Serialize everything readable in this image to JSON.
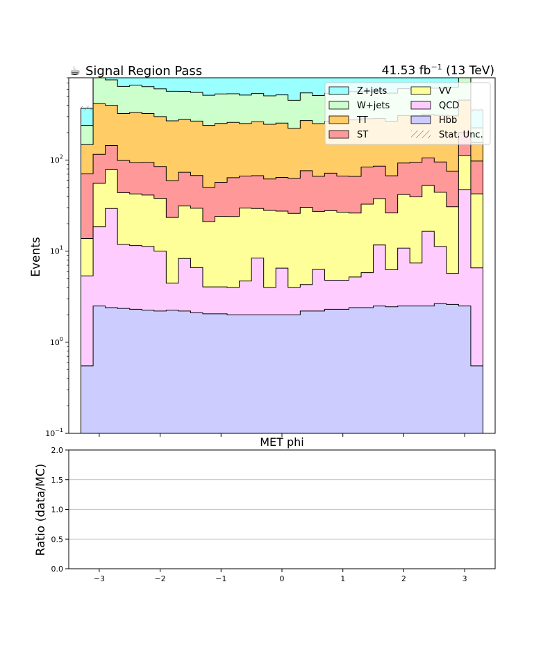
{
  "chart_data": [
    {
      "type": "area",
      "title": "Signal Region Pass",
      "title_icon": "coffee-icon",
      "title_icon_glyph": "☕",
      "lumi_label": "41.53 fb",
      "lumi_sup": "−1",
      "energy_label": " (13 TeV)",
      "ylabel": "Events",
      "xlabel": "MET phi",
      "y_scale": "log",
      "ylim": [
        0.1,
        800
      ],
      "y_ticks": [
        {
          "value": 0.1,
          "base": "10",
          "exp": "−1"
        },
        {
          "value": 1,
          "base": "10",
          "exp": "0"
        },
        {
          "value": 10,
          "base": "10",
          "exp": "1"
        },
        {
          "value": 100,
          "base": "10",
          "exp": "2"
        }
      ],
      "xlim": [
        -3.5,
        3.5
      ],
      "x_ticks": [
        {
          "value": -3,
          "label": "−3"
        },
        {
          "value": -2,
          "label": "−2"
        },
        {
          "value": -1,
          "label": "−1"
        },
        {
          "value": 0,
          "label": "0"
        },
        {
          "value": 1,
          "label": "1"
        },
        {
          "value": 2,
          "label": "2"
        },
        {
          "value": 3,
          "label": "3"
        }
      ],
      "stacked": true,
      "legend_position": "top-right",
      "bin_edges": [
        -3.3,
        -3.1,
        -2.9,
        -2.7,
        -2.5,
        -2.3,
        -2.1,
        -1.9,
        -1.7,
        -1.5,
        -1.3,
        -1.1,
        -0.9,
        -0.7,
        -0.5,
        -0.3,
        -0.1,
        0.1,
        0.3,
        0.5,
        0.7,
        0.9,
        1.1,
        1.3,
        1.5,
        1.7,
        1.9,
        2.1,
        2.3,
        2.5,
        2.7,
        2.9,
        3.1,
        3.3
      ],
      "series": [
        {
          "name": "Hbb",
          "color": "#ccccff",
          "values": [
            0.55,
            2.5,
            2.4,
            2.35,
            2.3,
            2.25,
            2.2,
            2.25,
            2.2,
            2.1,
            2.05,
            2.05,
            2.0,
            2.0,
            2.0,
            2.0,
            2.0,
            2.0,
            2.2,
            2.2,
            2.3,
            2.3,
            2.4,
            2.4,
            2.5,
            2.45,
            2.5,
            2.5,
            2.5,
            2.65,
            2.6,
            2.5,
            0.55
          ]
        },
        {
          "name": "QCD",
          "color": "#ffccff",
          "values": [
            4.8,
            16,
            27,
            9.5,
            9.2,
            9.0,
            7.8,
            2.2,
            6.1,
            4.5,
            2.0,
            2.0,
            2.0,
            2.7,
            6.4,
            2.0,
            4.5,
            2.0,
            2.1,
            4.1,
            2.5,
            2.5,
            2.8,
            3.4,
            9.2,
            3.8,
            8.3,
            4.9,
            14,
            8.6,
            3.1,
            45,
            6.0
          ]
        },
        {
          "name": "VV",
          "color": "#ffff99",
          "values": [
            8.4,
            37,
            49,
            32,
            31,
            30,
            28,
            19,
            23,
            23,
            17,
            20,
            20,
            25,
            21,
            24,
            21,
            22,
            26,
            21,
            23,
            22,
            21,
            27,
            26,
            20,
            31,
            32,
            36,
            33,
            25,
            65,
            36
          ]
        },
        {
          "name": "ST",
          "color": "#ff9999",
          "values": [
            57,
            60,
            66,
            55,
            51,
            53,
            47,
            36,
            42,
            38,
            29,
            33,
            40,
            37,
            38,
            34,
            37,
            37,
            46,
            39,
            44,
            40,
            40,
            51,
            48,
            41,
            51,
            55,
            53,
            51,
            45,
            88,
            55
          ]
        },
        {
          "name": "TT",
          "color": "#ffcc66",
          "values": [
            77,
            300,
            255,
            225,
            240,
            230,
            215,
            210,
            205,
            200,
            190,
            195,
            195,
            185,
            195,
            185,
            190,
            160,
            195,
            185,
            195,
            195,
            210,
            200,
            200,
            200,
            215,
            210,
            210,
            215,
            230,
            255,
            58
          ]
        },
        {
          "name": "W+jets",
          "color": "#ccffcc",
          "values": [
            92,
            420,
            360,
            320,
            330,
            315,
            305,
            300,
            290,
            285,
            275,
            280,
            275,
            265,
            275,
            260,
            265,
            230,
            275,
            260,
            275,
            275,
            290,
            280,
            285,
            275,
            300,
            295,
            300,
            305,
            325,
            420,
            70
          ]
        },
        {
          "name": "Z+jets",
          "color": "#99ffff",
          "values": [
            130,
            670,
            590,
            560,
            580,
            560,
            540,
            525,
            505,
            500,
            480,
            480,
            475,
            470,
            480,
            470,
            470,
            450,
            480,
            480,
            495,
            500,
            505,
            520,
            530,
            525,
            545,
            560,
            570,
            575,
            610,
            705,
            130
          ]
        }
      ],
      "stat_unc_label": "Stat. Unc.",
      "legend": [
        {
          "name": "Z+jets",
          "color": "#99ffff"
        },
        {
          "name": "VV",
          "color": "#ffff99"
        },
        {
          "name": "W+jets",
          "color": "#ccffcc"
        },
        {
          "name": "QCD",
          "color": "#ffccff"
        },
        {
          "name": "TT",
          "color": "#ffcc66"
        },
        {
          "name": "Hbb",
          "color": "#ccccff"
        },
        {
          "name": "ST",
          "color": "#ff9999"
        },
        {
          "name": "Stat. Unc.",
          "color": "hatch"
        }
      ]
    },
    {
      "type": "line",
      "ylabel": "Ratio (data/MC)",
      "ylim": [
        0,
        2
      ],
      "y_ticks": [
        "0.0",
        "0.5",
        "1.0",
        "1.5",
        "2.0"
      ],
      "y_tick_values": [
        0,
        0.5,
        1,
        1.5,
        2
      ],
      "gridlines_y": [
        0.5,
        1.0,
        1.5
      ],
      "xlim": [
        -3.5,
        3.5
      ],
      "x_ticks": [
        {
          "value": -3,
          "label": "−3"
        },
        {
          "value": -2,
          "label": "−2"
        },
        {
          "value": -1,
          "label": "−1"
        },
        {
          "value": 0,
          "label": "0"
        },
        {
          "value": 1,
          "label": "1"
        },
        {
          "value": 2,
          "label": "2"
        },
        {
          "value": 3,
          "label": "3"
        }
      ],
      "series": []
    }
  ]
}
